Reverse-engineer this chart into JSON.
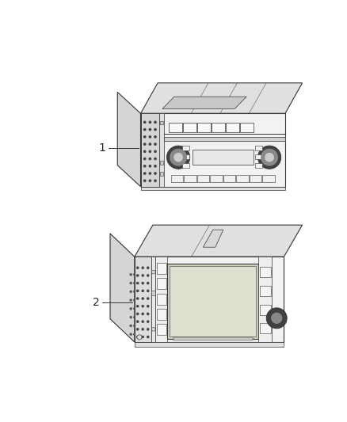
{
  "background_color": "#ffffff",
  "unit1_label": "1",
  "unit2_label": "2",
  "lc": "#555555",
  "dc": "#333333",
  "lgray": "#cccccc",
  "mgray": "#aaaaaa",
  "face_color": "#f2f2f2",
  "side_color": "#d5d5d5",
  "top_color": "#e0e0e0",
  "screen_color": "#d8d8cc",
  "dark_fill": "#888888"
}
